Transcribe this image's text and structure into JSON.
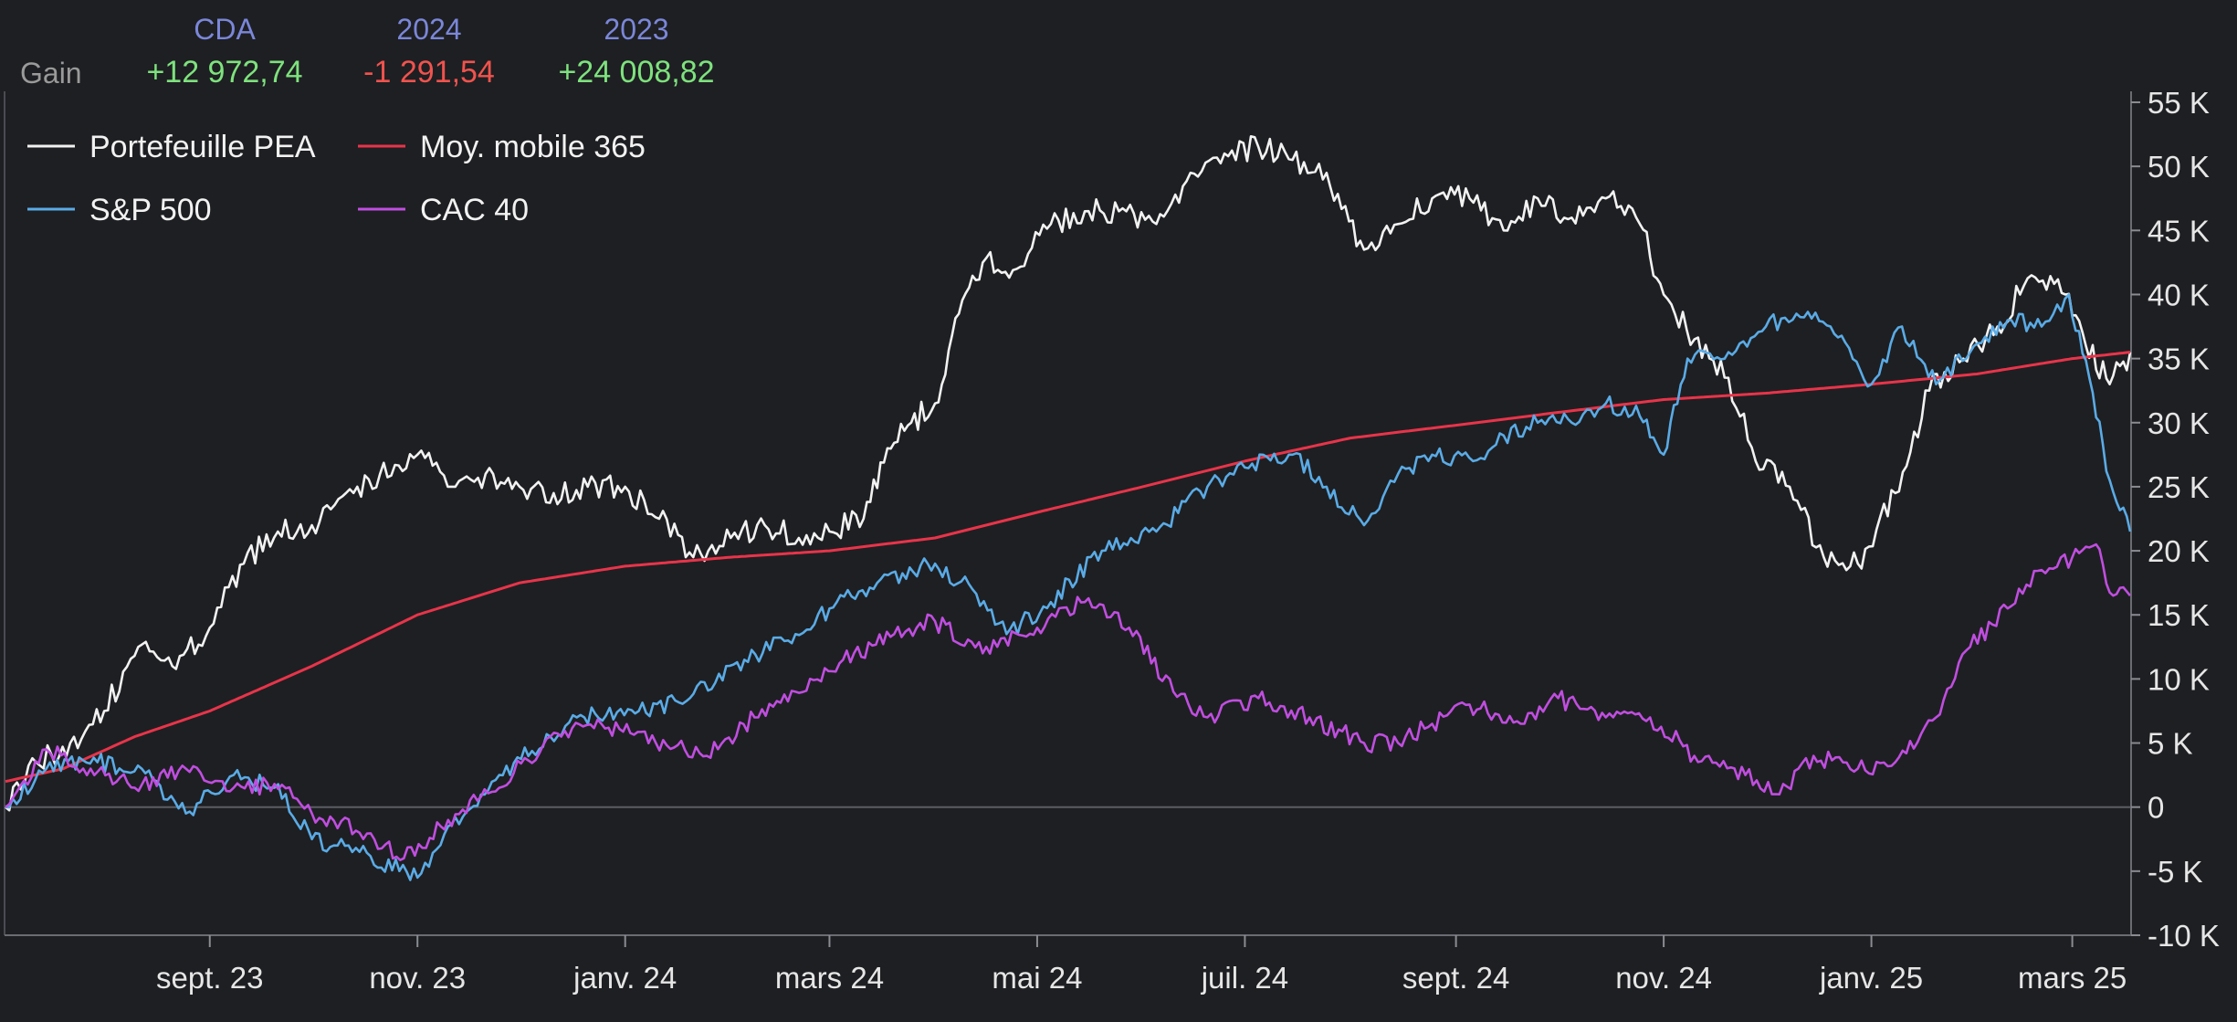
{
  "summary": {
    "row_label": "Gain",
    "columns": [
      {
        "header": "CDA",
        "value": "+12 972,74",
        "color": "#7ee27e"
      },
      {
        "header": "2024",
        "value": "-1 291,54",
        "color": "#f0534e"
      },
      {
        "header": "2023",
        "value": "+24 008,82",
        "color": "#7ee27e"
      }
    ]
  },
  "chart_data": {
    "type": "line",
    "ylim": [
      -10000,
      55000
    ],
    "xlim": [
      "2023-07-03",
      "2025-03-18"
    ],
    "y_ticks": [
      {
        "value": 55000,
        "label": "55 K"
      },
      {
        "value": 50000,
        "label": "50 K"
      },
      {
        "value": 45000,
        "label": "45 K"
      },
      {
        "value": 40000,
        "label": "40 K"
      },
      {
        "value": 35000,
        "label": "35 K"
      },
      {
        "value": 30000,
        "label": "30 K"
      },
      {
        "value": 25000,
        "label": "25 K"
      },
      {
        "value": 20000,
        "label": "20 K"
      },
      {
        "value": 15000,
        "label": "15 K"
      },
      {
        "value": 10000,
        "label": "10 K"
      },
      {
        "value": 5000,
        "label": "5 K"
      },
      {
        "value": 0,
        "label": "0"
      },
      {
        "value": -5000,
        "label": "-5 K"
      },
      {
        "value": -10000,
        "label": "-10 K"
      }
    ],
    "x_ticks": [
      {
        "date": "2023-09-01",
        "label": "sept. 23"
      },
      {
        "date": "2023-11-01",
        "label": "nov. 23"
      },
      {
        "date": "2024-01-01",
        "label": "janv. 24"
      },
      {
        "date": "2024-03-01",
        "label": "mars 24"
      },
      {
        "date": "2024-05-01",
        "label": "mai 24"
      },
      {
        "date": "2024-07-01",
        "label": "juil. 24"
      },
      {
        "date": "2024-09-01",
        "label": "sept. 24"
      },
      {
        "date": "2024-11-01",
        "label": "nov. 24"
      },
      {
        "date": "2025-01-01",
        "label": "janv. 25"
      },
      {
        "date": "2025-03-01",
        "label": "mars 25"
      }
    ],
    "legend_position": "top-left",
    "series": [
      {
        "name": "Portefeuille PEA",
        "color": "#f2f2f2",
        "points": [
          [
            "2023-07-03",
            0
          ],
          [
            "2023-07-12",
            3500
          ],
          [
            "2023-07-22",
            5000
          ],
          [
            "2023-08-01",
            7500
          ],
          [
            "2023-08-11",
            12500
          ],
          [
            "2023-08-21",
            11000
          ],
          [
            "2023-09-01",
            14000
          ],
          [
            "2023-09-11",
            19000
          ],
          [
            "2023-09-21",
            21500
          ],
          [
            "2023-10-01",
            22000
          ],
          [
            "2023-10-11",
            24500
          ],
          [
            "2023-10-21",
            26000
          ],
          [
            "2023-11-01",
            27500
          ],
          [
            "2023-11-11",
            25000
          ],
          [
            "2023-11-21",
            26000
          ],
          [
            "2023-12-01",
            25000
          ],
          [
            "2023-12-11",
            24500
          ],
          [
            "2023-12-21",
            25000
          ],
          [
            "2024-01-01",
            25000
          ],
          [
            "2024-01-11",
            22500
          ],
          [
            "2024-01-21",
            19500
          ],
          [
            "2024-02-01",
            21000
          ],
          [
            "2024-02-11",
            22000
          ],
          [
            "2024-02-21",
            21000
          ],
          [
            "2024-03-01",
            21500
          ],
          [
            "2024-03-11",
            22500
          ],
          [
            "2024-03-18",
            28000
          ],
          [
            "2024-03-25",
            30000
          ],
          [
            "2024-04-01",
            31500
          ],
          [
            "2024-04-08",
            38500
          ],
          [
            "2024-04-15",
            42500
          ],
          [
            "2024-04-25",
            42000
          ],
          [
            "2024-05-05",
            45500
          ],
          [
            "2024-05-15",
            46500
          ],
          [
            "2024-05-25",
            46500
          ],
          [
            "2024-06-05",
            45500
          ],
          [
            "2024-06-15",
            49500
          ],
          [
            "2024-06-25",
            51000
          ],
          [
            "2024-07-05",
            51500
          ],
          [
            "2024-07-15",
            50500
          ],
          [
            "2024-07-25",
            49500
          ],
          [
            "2024-08-05",
            43500
          ],
          [
            "2024-08-15",
            45500
          ],
          [
            "2024-08-25",
            47500
          ],
          [
            "2024-09-05",
            47500
          ],
          [
            "2024-09-15",
            45000
          ],
          [
            "2024-09-25",
            47500
          ],
          [
            "2024-10-05",
            46000
          ],
          [
            "2024-10-15",
            47500
          ],
          [
            "2024-10-25",
            45500
          ],
          [
            "2024-11-01",
            40000
          ],
          [
            "2024-11-10",
            36500
          ],
          [
            "2024-11-20",
            33500
          ],
          [
            "2024-11-28",
            27000
          ],
          [
            "2024-12-08",
            25000
          ],
          [
            "2024-12-18",
            19500
          ],
          [
            "2024-12-28",
            19000
          ],
          [
            "2025-01-08",
            24500
          ],
          [
            "2025-01-18",
            32500
          ],
          [
            "2025-01-28",
            35000
          ],
          [
            "2025-02-07",
            37500
          ],
          [
            "2025-02-17",
            41500
          ],
          [
            "2025-02-27",
            40000
          ],
          [
            "2025-03-05",
            36000
          ],
          [
            "2025-03-12",
            33000
          ],
          [
            "2025-03-18",
            35500
          ]
        ]
      },
      {
        "name": "Moy. mobile 365",
        "color": "#e8344a",
        "points": [
          [
            "2023-07-03",
            2000
          ],
          [
            "2023-07-20",
            3000
          ],
          [
            "2023-08-10",
            5500
          ],
          [
            "2023-09-01",
            7500
          ],
          [
            "2023-10-01",
            11000
          ],
          [
            "2023-11-01",
            15000
          ],
          [
            "2023-12-01",
            17500
          ],
          [
            "2024-01-01",
            18800
          ],
          [
            "2024-02-01",
            19500
          ],
          [
            "2024-03-01",
            20000
          ],
          [
            "2024-04-01",
            21000
          ],
          [
            "2024-05-01",
            23000
          ],
          [
            "2024-06-01",
            25000
          ],
          [
            "2024-07-01",
            27000
          ],
          [
            "2024-08-01",
            28800
          ],
          [
            "2024-09-01",
            29800
          ],
          [
            "2024-10-01",
            30800
          ],
          [
            "2024-11-01",
            31800
          ],
          [
            "2024-12-01",
            32300
          ],
          [
            "2025-01-01",
            33000
          ],
          [
            "2025-02-01",
            33800
          ],
          [
            "2025-03-01",
            35000
          ],
          [
            "2025-03-18",
            35500
          ]
        ]
      },
      {
        "name": "S&P 500",
        "color": "#5aabe6",
        "points": [
          [
            "2023-07-03",
            0
          ],
          [
            "2023-07-15",
            3000
          ],
          [
            "2023-07-30",
            3500
          ],
          [
            "2023-08-12",
            3000
          ],
          [
            "2023-08-25",
            -500
          ],
          [
            "2023-09-08",
            2500
          ],
          [
            "2023-09-20",
            1500
          ],
          [
            "2023-10-01",
            -2500
          ],
          [
            "2023-10-15",
            -3500
          ],
          [
            "2023-11-01",
            -5500
          ],
          [
            "2023-11-10",
            -1500
          ],
          [
            "2023-11-25",
            2500
          ],
          [
            "2023-12-10",
            5500
          ],
          [
            "2023-12-20",
            7000
          ],
          [
            "2024-01-05",
            7500
          ],
          [
            "2024-01-20",
            8500
          ],
          [
            "2024-02-05",
            11500
          ],
          [
            "2024-02-20",
            13500
          ],
          [
            "2024-03-01",
            15500
          ],
          [
            "2024-03-15",
            17500
          ],
          [
            "2024-04-01",
            19000
          ],
          [
            "2024-04-12",
            17000
          ],
          [
            "2024-04-22",
            13500
          ],
          [
            "2024-05-05",
            16000
          ],
          [
            "2024-05-20",
            20000
          ],
          [
            "2024-06-05",
            21500
          ],
          [
            "2024-06-20",
            25000
          ],
          [
            "2024-07-01",
            26500
          ],
          [
            "2024-07-15",
            27500
          ],
          [
            "2024-07-25",
            25000
          ],
          [
            "2024-08-05",
            22000
          ],
          [
            "2024-08-15",
            26000
          ],
          [
            "2024-08-25",
            27500
          ],
          [
            "2024-09-06",
            27000
          ],
          [
            "2024-09-15",
            29000
          ],
          [
            "2024-09-25",
            30000
          ],
          [
            "2024-10-05",
            30000
          ],
          [
            "2024-10-15",
            31500
          ],
          [
            "2024-10-25",
            30500
          ],
          [
            "2024-11-01",
            27500
          ],
          [
            "2024-11-08",
            35000
          ],
          [
            "2024-11-20",
            35500
          ],
          [
            "2024-12-01",
            37500
          ],
          [
            "2024-12-10",
            38500
          ],
          [
            "2024-12-20",
            37500
          ],
          [
            "2025-01-01",
            33000
          ],
          [
            "2025-01-10",
            37500
          ],
          [
            "2025-01-20",
            33000
          ],
          [
            "2025-01-30",
            35500
          ],
          [
            "2025-02-10",
            38000
          ],
          [
            "2025-02-20",
            37500
          ],
          [
            "2025-02-28",
            40000
          ],
          [
            "2025-03-06",
            33500
          ],
          [
            "2025-03-12",
            25500
          ],
          [
            "2025-03-18",
            21500
          ]
        ]
      },
      {
        "name": "CAC 40",
        "color": "#c04ee0",
        "points": [
          [
            "2023-07-03",
            0
          ],
          [
            "2023-07-15",
            4500
          ],
          [
            "2023-07-28",
            3000
          ],
          [
            "2023-08-10",
            1500
          ],
          [
            "2023-08-25",
            3000
          ],
          [
            "2023-09-08",
            1500
          ],
          [
            "2023-09-20",
            1800
          ],
          [
            "2023-10-01",
            -500
          ],
          [
            "2023-10-15",
            -2000
          ],
          [
            "2023-10-28",
            -4000
          ],
          [
            "2023-11-10",
            -1000
          ],
          [
            "2023-11-25",
            1500
          ],
          [
            "2023-12-10",
            5500
          ],
          [
            "2023-12-25",
            6500
          ],
          [
            "2024-01-10",
            5000
          ],
          [
            "2024-01-25",
            4000
          ],
          [
            "2024-02-08",
            7000
          ],
          [
            "2024-02-20",
            9000
          ],
          [
            "2024-03-05",
            11500
          ],
          [
            "2024-03-20",
            13500
          ],
          [
            "2024-04-01",
            14500
          ],
          [
            "2024-04-15",
            12000
          ],
          [
            "2024-05-01",
            14000
          ],
          [
            "2024-05-15",
            16000
          ],
          [
            "2024-05-28",
            14000
          ],
          [
            "2024-06-10",
            9000
          ],
          [
            "2024-06-20",
            7000
          ],
          [
            "2024-07-05",
            8500
          ],
          [
            "2024-07-20",
            7000
          ],
          [
            "2024-08-05",
            5000
          ],
          [
            "2024-08-15",
            5000
          ],
          [
            "2024-08-25",
            6500
          ],
          [
            "2024-09-05",
            8000
          ],
          [
            "2024-09-20",
            6500
          ],
          [
            "2024-10-01",
            8500
          ],
          [
            "2024-10-15",
            7000
          ],
          [
            "2024-10-28",
            7000
          ],
          [
            "2024-11-10",
            4000
          ],
          [
            "2024-11-25",
            2500
          ],
          [
            "2024-12-05",
            1000
          ],
          [
            "2024-12-15",
            4000
          ],
          [
            "2024-12-28",
            3000
          ],
          [
            "2025-01-08",
            3500
          ],
          [
            "2025-01-20",
            7000
          ],
          [
            "2025-01-30",
            12500
          ],
          [
            "2025-02-10",
            15500
          ],
          [
            "2025-02-20",
            18500
          ],
          [
            "2025-03-01",
            19500
          ],
          [
            "2025-03-08",
            20500
          ],
          [
            "2025-03-13",
            16500
          ],
          [
            "2025-03-18",
            16500
          ]
        ]
      }
    ]
  }
}
